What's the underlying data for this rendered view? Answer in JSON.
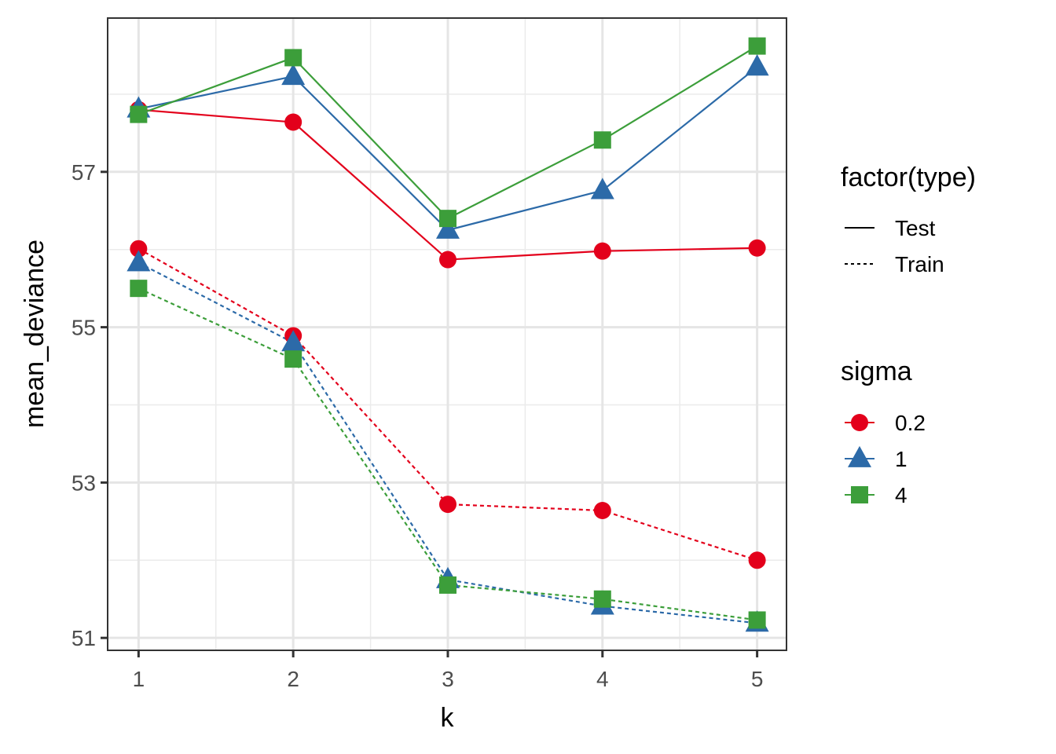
{
  "chart_data": {
    "type": "line",
    "title": "",
    "xlabel": "k",
    "ylabel": "mean_deviance",
    "x": [
      1,
      2,
      3,
      4,
      5
    ],
    "xlim": [
      0.8,
      5.19
    ],
    "ylim": [
      50.84,
      58.98
    ],
    "x_ticks": [
      1,
      2,
      3,
      4,
      5
    ],
    "x_tick_labels": [
      "1",
      "2",
      "3",
      "4",
      "5"
    ],
    "y_ticks": [
      51,
      53,
      55,
      57
    ],
    "y_tick_labels": [
      "51",
      "53",
      "55",
      "57"
    ],
    "y_minor_ticks": [
      52,
      54,
      56,
      58
    ],
    "x_minor_ticks": [
      1.5,
      2.5,
      3.5,
      4.5
    ],
    "grid": true,
    "legend_position": "right",
    "legends": [
      {
        "title": "factor(type)",
        "entries": [
          {
            "label": "Test",
            "linetype": "solid"
          },
          {
            "label": "Train",
            "linetype": "dotted"
          }
        ]
      },
      {
        "title": "sigma",
        "entries": [
          {
            "label": "0.2",
            "shape": "circle",
            "color": "#E3001B"
          },
          {
            "label": "1",
            "shape": "triangle",
            "color": "#2C6AA8"
          },
          {
            "label": "4",
            "shape": "square",
            "color": "#3C9E3A"
          }
        ]
      }
    ],
    "series": [
      {
        "name": "0.2 Test",
        "sigma": "0.2",
        "type": "Test",
        "shape": "circle",
        "color": "#E3001B",
        "linetype": "solid",
        "values": [
          57.8,
          57.64,
          55.87,
          55.98,
          56.02
        ]
      },
      {
        "name": "1 Test",
        "sigma": "1",
        "type": "Test",
        "shape": "triangle",
        "color": "#2C6AA8",
        "linetype": "solid",
        "values": [
          57.81,
          58.23,
          56.25,
          56.76,
          58.35
        ]
      },
      {
        "name": "4 Test",
        "sigma": "4",
        "type": "Test",
        "shape": "square",
        "color": "#3C9E3A",
        "linetype": "solid",
        "values": [
          57.74,
          58.47,
          56.4,
          57.41,
          58.62
        ]
      },
      {
        "name": "0.2 Train",
        "sigma": "0.2",
        "type": "Train",
        "shape": "circle",
        "color": "#E3001B",
        "linetype": "dotted",
        "values": [
          56.01,
          54.89,
          52.72,
          52.64,
          52.0
        ]
      },
      {
        "name": "1 Train",
        "sigma": "1",
        "type": "Train",
        "shape": "triangle",
        "color": "#2C6AA8",
        "linetype": "dotted",
        "values": [
          55.83,
          54.8,
          51.75,
          51.41,
          51.19
        ]
      },
      {
        "name": "4 Train",
        "sigma": "4",
        "type": "Train",
        "shape": "square",
        "color": "#3C9E3A",
        "linetype": "dotted",
        "values": [
          55.5,
          54.59,
          51.68,
          51.5,
          51.23
        ]
      }
    ]
  }
}
